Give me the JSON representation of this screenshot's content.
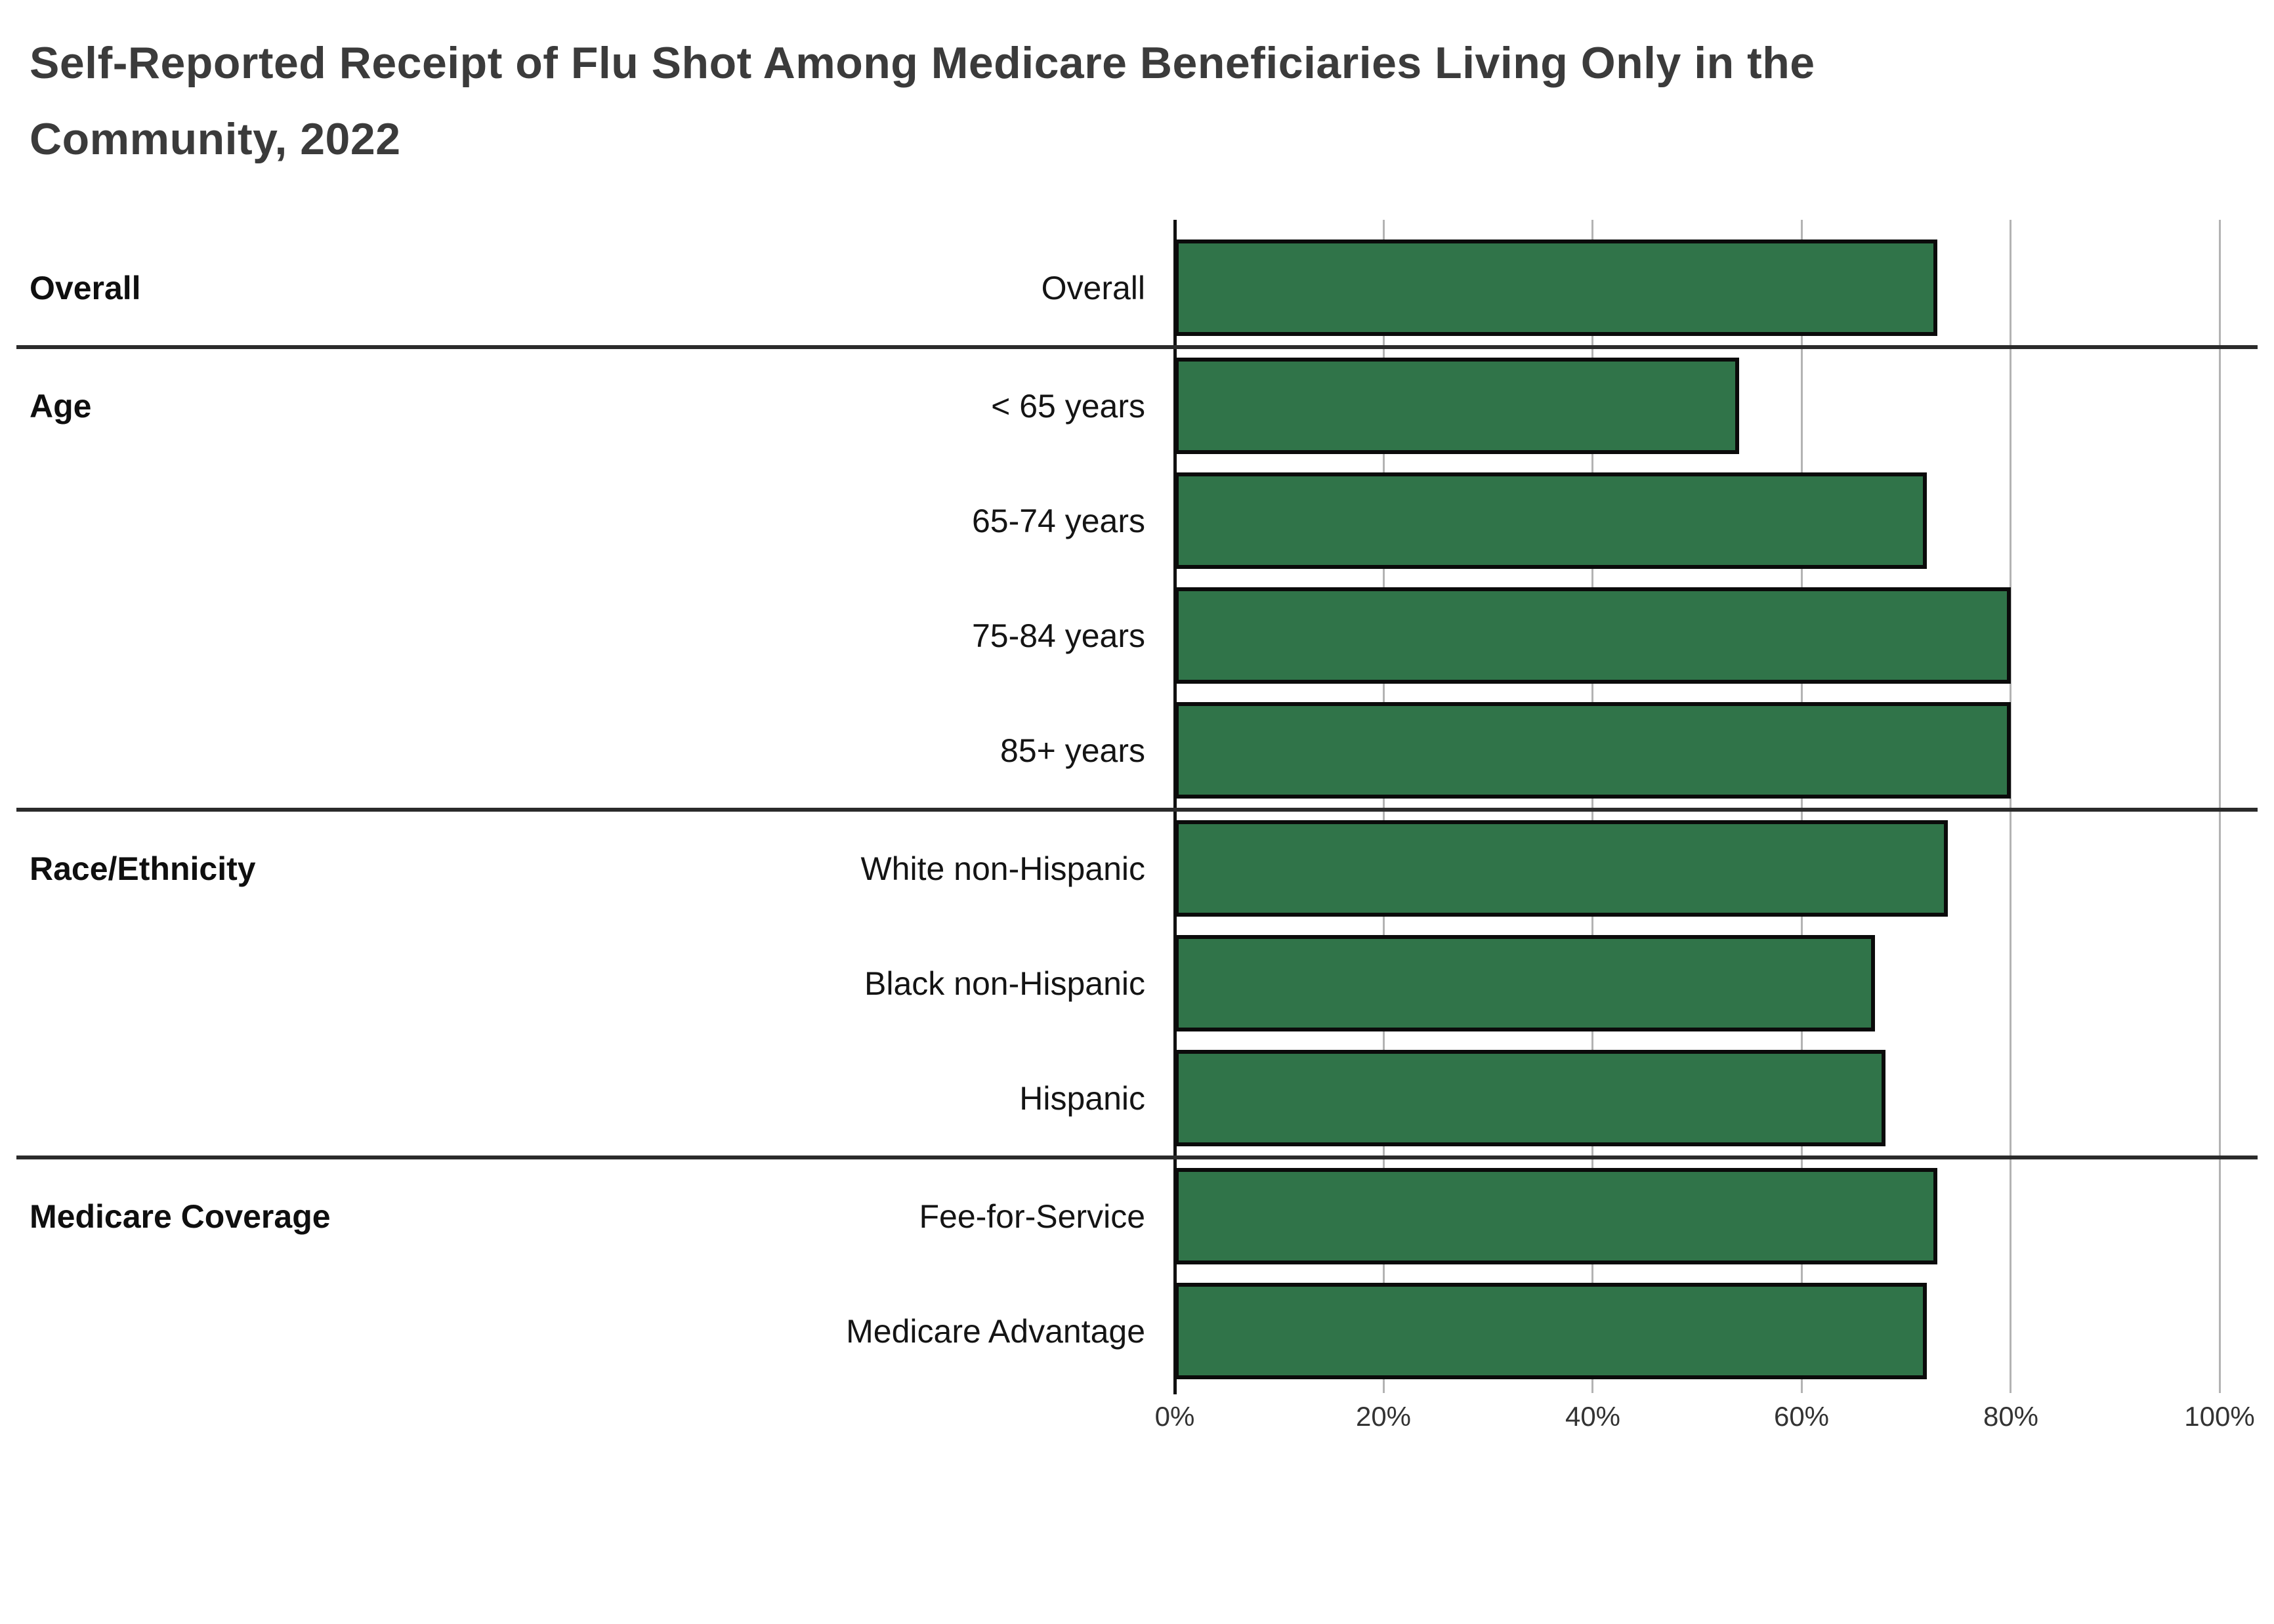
{
  "title": "Self-Reported Receipt of Flu Shot Among Medicare Beneficiaries Living Only in the\nCommunity, 2022",
  "chart_data": {
    "type": "bar",
    "orientation": "horizontal",
    "title": "Self-Reported Receipt of Flu Shot Among Medicare Beneficiaries Living Only in the Community, 2022",
    "xlabel": "",
    "ylabel": "",
    "xlim": [
      0,
      100
    ],
    "x_tick_values": [
      0,
      20,
      40,
      60,
      80,
      100
    ],
    "x_tick_labels": [
      "0%",
      "20%",
      "40%",
      "60%",
      "80%",
      "100%"
    ],
    "grid": true,
    "legend": false,
    "unit": "percent",
    "colors": {
      "bar_fill": "#307449",
      "bar_border": "#0b0b0b",
      "gridline": "#b3b3b3",
      "axis_line": "#111111",
      "separator": "#2b2b2b",
      "title_text": "#3b3b3b",
      "label_text": "#141414",
      "tick_text": "#333333"
    },
    "groups": [
      {
        "label": "Overall",
        "rows": [
          {
            "label": "Overall",
            "value": 73
          }
        ]
      },
      {
        "label": "Age",
        "rows": [
          {
            "label": "< 65 years",
            "value": 54
          },
          {
            "label": "65-74 years",
            "value": 72
          },
          {
            "label": "75-84 years",
            "value": 80
          },
          {
            "label": "85+ years",
            "value": 80
          }
        ]
      },
      {
        "label": "Race/Ethnicity",
        "rows": [
          {
            "label": "White non-Hispanic",
            "value": 74
          },
          {
            "label": "Black non-Hispanic",
            "value": 67
          },
          {
            "label": "Hispanic",
            "value": 68
          }
        ]
      },
      {
        "label": "Medicare Coverage",
        "rows": [
          {
            "label": "Fee-for-Service",
            "value": 73
          },
          {
            "label": "Medicare Advantage",
            "value": 72
          }
        ]
      }
    ]
  }
}
